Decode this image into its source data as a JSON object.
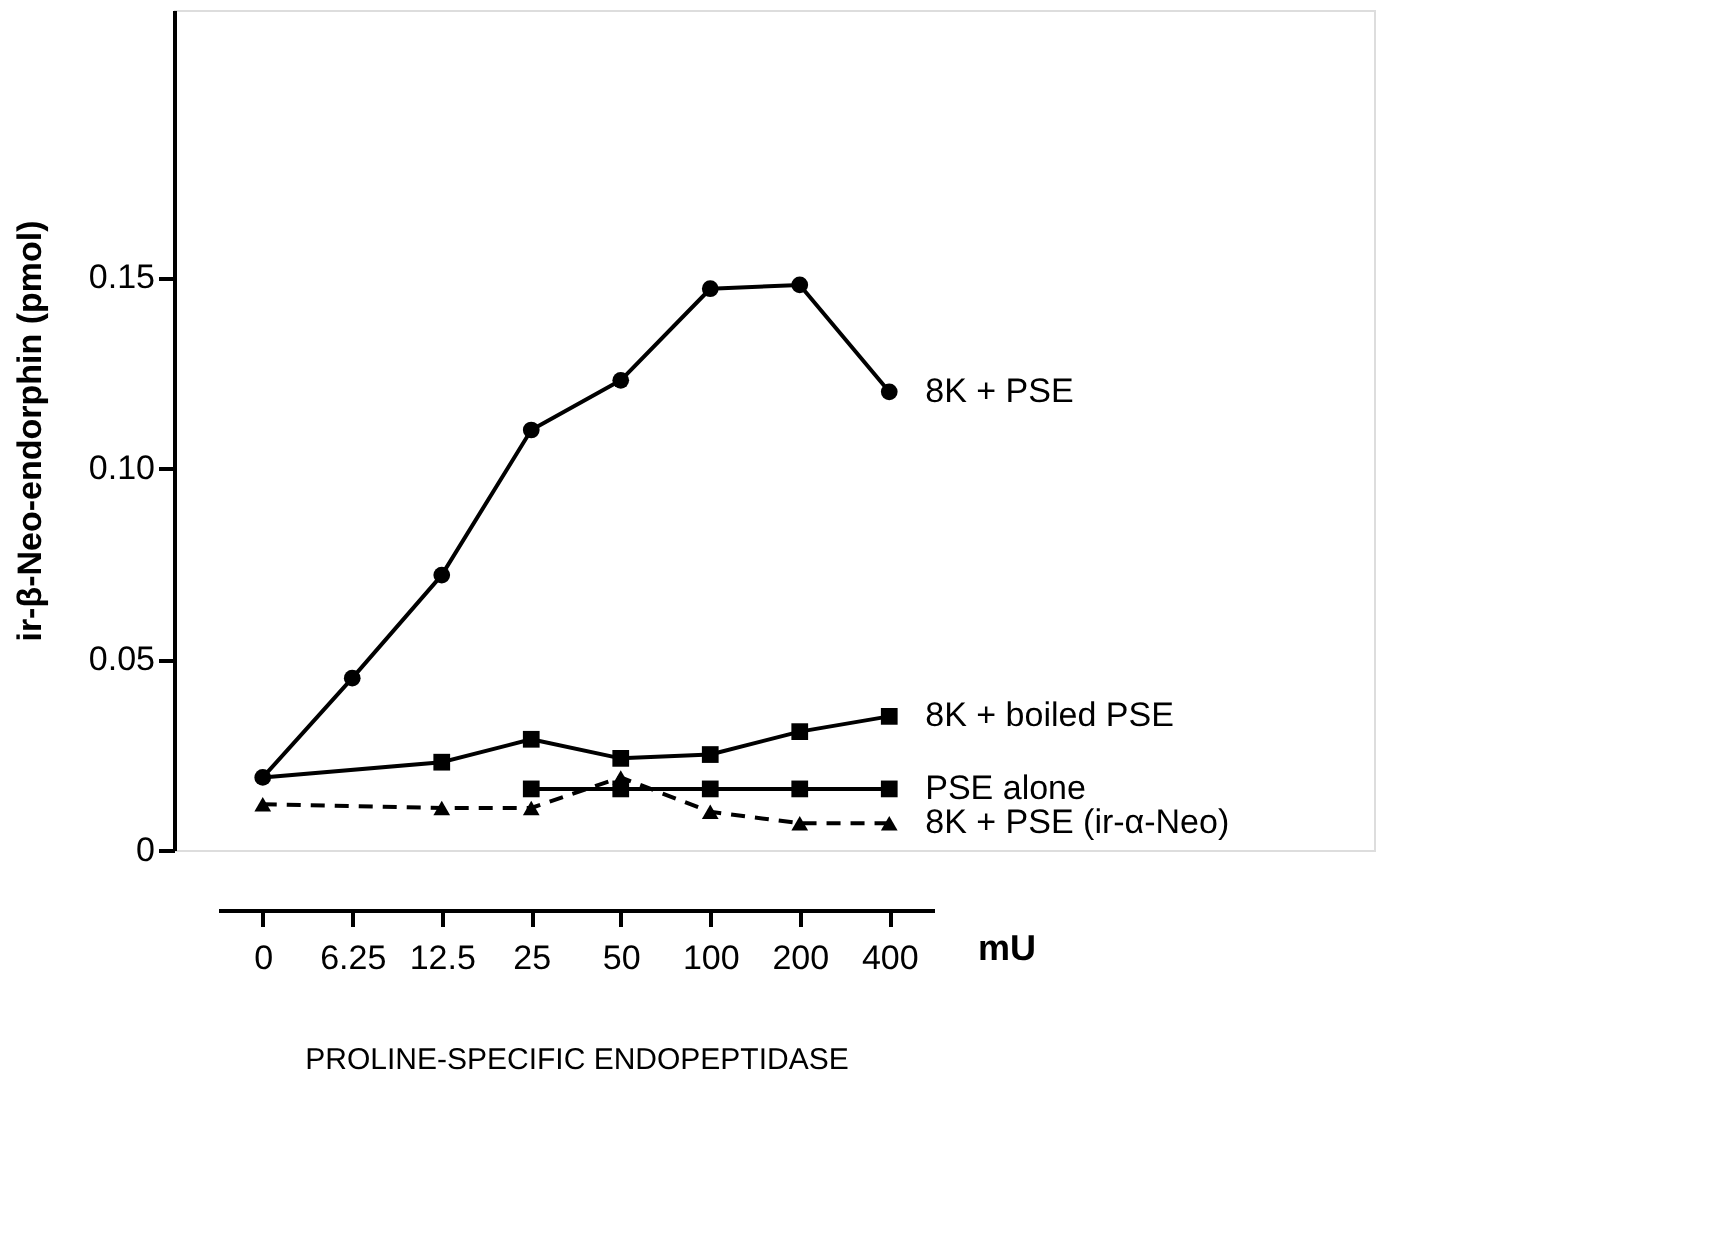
{
  "chart_data": {
    "type": "line",
    "xlabel": "PROLINE-SPECIFIC ENDOPEPTIDASE",
    "ylabel": "ir-β-Neo-endorphin (pmol)",
    "categories": [
      "0",
      "6.25",
      "12.5",
      "25",
      "50",
      "100",
      "200",
      "400"
    ],
    "series": [
      {
        "name": "8K + PSE",
        "color": "#000000",
        "marker": "circle",
        "line_style": "solid",
        "values": [
          0.019,
          0.045,
          0.072,
          0.11,
          0.123,
          0.147,
          0.148,
          0.12
        ]
      },
      {
        "name": "8K + boiled PSE",
        "color": "#000000",
        "marker": "square",
        "line_style": "solid",
        "values": [
          0.019,
          null,
          0.023,
          0.029,
          0.024,
          0.025,
          0.031,
          0.035
        ]
      },
      {
        "name": "PSE alone",
        "color": "#000000",
        "marker": "square",
        "line_style": "solid",
        "values": [
          null,
          null,
          null,
          0.016,
          0.016,
          0.016,
          0.016,
          0.016
        ]
      },
      {
        "name": "8K + PSE   (ir-α-Neo)",
        "color": "#000000",
        "marker": "triangle",
        "line_style": "dashed",
        "values": [
          0.012,
          null,
          0.011,
          0.011,
          0.019,
          0.01,
          0.007,
          0.007
        ]
      }
    ],
    "ylim": [
      0,
      0.22
    ],
    "yticks": [
      0,
      0.05,
      {
        "value": 0.1,
        "label": "0.10"
      },
      0.15
    ],
    "annotations": [
      "mU"
    ]
  }
}
